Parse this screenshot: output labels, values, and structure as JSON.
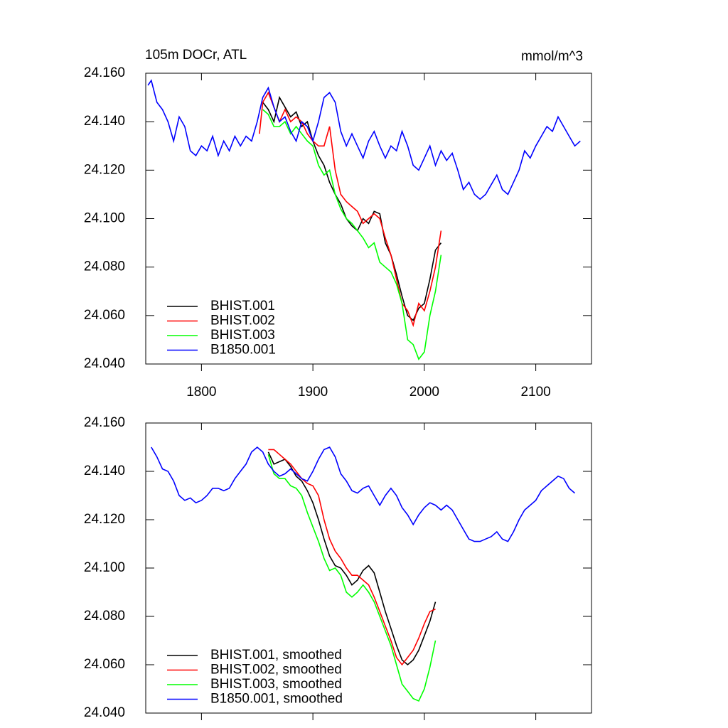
{
  "chart_data": [
    {
      "type": "line",
      "title": "105m DOCr, ATL",
      "units": "mmol/m^3",
      "xlim": [
        1750,
        2150
      ],
      "xticks": [
        1800,
        1900,
        2000,
        2100
      ],
      "xtick_labels": true,
      "ylim": [
        24.04,
        24.16
      ],
      "yticks": [
        {
          "value": 24.04,
          "label": "24.040"
        },
        {
          "value": 24.06,
          "label": "24.060"
        },
        {
          "value": 24.08,
          "label": "24.080"
        },
        {
          "value": 24.1,
          "label": "24.100"
        },
        {
          "value": 24.12,
          "label": "24.120"
        },
        {
          "value": 24.14,
          "label": "24.140"
        },
        {
          "value": 24.16,
          "label": "24.160"
        }
      ],
      "legend": "lower left",
      "series": [
        {
          "name": "BHIST.001",
          "color": "#000000",
          "x": [
            1855,
            1860,
            1865,
            1870,
            1875,
            1880,
            1885,
            1890,
            1895,
            1900,
            1905,
            1910,
            1915,
            1920,
            1925,
            1930,
            1935,
            1940,
            1945,
            1950,
            1955,
            1960,
            1965,
            1970,
            1975,
            1980,
            1985,
            1990,
            1995,
            2000,
            2005,
            2010,
            2015
          ],
          "values": [
            24.148,
            24.145,
            24.14,
            24.15,
            24.146,
            24.142,
            24.144,
            24.138,
            24.14,
            24.132,
            24.126,
            24.122,
            24.115,
            24.11,
            24.106,
            24.1,
            24.097,
            24.095,
            24.1,
            24.098,
            24.103,
            24.102,
            24.09,
            24.085,
            24.077,
            24.068,
            24.06,
            24.058,
            24.063,
            24.065,
            24.075,
            24.087,
            24.09
          ]
        },
        {
          "name": "BHIST.002",
          "color": "#ff0000",
          "x": [
            1852,
            1855,
            1860,
            1865,
            1870,
            1875,
            1880,
            1885,
            1890,
            1895,
            1900,
            1905,
            1910,
            1915,
            1920,
            1925,
            1930,
            1935,
            1940,
            1945,
            1950,
            1955,
            1960,
            1965,
            1970,
            1975,
            1980,
            1985,
            1990,
            1995,
            2000,
            2005,
            2010,
            2015
          ],
          "values": [
            24.135,
            24.148,
            24.152,
            24.146,
            24.14,
            24.145,
            24.14,
            24.142,
            24.14,
            24.135,
            24.132,
            24.13,
            24.13,
            24.138,
            24.12,
            24.11,
            24.107,
            24.105,
            24.103,
            24.098,
            24.1,
            24.102,
            24.1,
            24.092,
            24.085,
            24.075,
            24.065,
            24.062,
            24.056,
            24.065,
            24.062,
            24.07,
            24.08,
            24.095
          ]
        },
        {
          "name": "BHIST.003",
          "color": "#00ff00",
          "x": [
            1855,
            1860,
            1865,
            1870,
            1875,
            1880,
            1885,
            1890,
            1895,
            1900,
            1905,
            1910,
            1915,
            1920,
            1925,
            1930,
            1935,
            1940,
            1945,
            1950,
            1955,
            1960,
            1965,
            1970,
            1975,
            1980,
            1985,
            1990,
            1995,
            2000,
            2005,
            2010,
            2015
          ],
          "values": [
            24.145,
            24.143,
            24.138,
            24.138,
            24.14,
            24.135,
            24.138,
            24.135,
            24.132,
            24.13,
            24.122,
            24.118,
            24.12,
            24.11,
            24.104,
            24.1,
            24.098,
            24.095,
            24.092,
            24.088,
            24.09,
            24.082,
            24.08,
            24.078,
            24.073,
            24.065,
            24.05,
            24.048,
            24.042,
            24.045,
            24.06,
            24.07,
            24.085
          ]
        },
        {
          "name": "B1850.001",
          "color": "#0000ff",
          "x": [
            1752,
            1755,
            1760,
            1765,
            1770,
            1775,
            1780,
            1785,
            1790,
            1795,
            1800,
            1805,
            1810,
            1815,
            1820,
            1825,
            1830,
            1835,
            1840,
            1845,
            1850,
            1855,
            1860,
            1865,
            1870,
            1875,
            1880,
            1885,
            1890,
            1895,
            1900,
            1905,
            1910,
            1915,
            1920,
            1925,
            1930,
            1935,
            1940,
            1945,
            1950,
            1955,
            1960,
            1965,
            1970,
            1975,
            1980,
            1985,
            1990,
            1995,
            2000,
            2005,
            2010,
            2015,
            2020,
            2025,
            2030,
            2035,
            2040,
            2045,
            2050,
            2055,
            2060,
            2065,
            2070,
            2075,
            2080,
            2085,
            2090,
            2095,
            2100,
            2105,
            2110,
            2115,
            2120,
            2125,
            2130,
            2135,
            2140
          ],
          "values": [
            24.155,
            24.157,
            24.148,
            24.145,
            24.14,
            24.132,
            24.142,
            24.138,
            24.128,
            24.126,
            24.13,
            24.128,
            24.134,
            24.126,
            24.132,
            24.128,
            24.134,
            24.13,
            24.134,
            24.132,
            24.14,
            24.15,
            24.154,
            24.146,
            24.14,
            24.142,
            24.136,
            24.132,
            24.14,
            24.138,
            24.132,
            24.14,
            24.15,
            24.152,
            24.148,
            24.136,
            24.13,
            24.135,
            24.13,
            24.125,
            24.132,
            24.136,
            24.13,
            24.125,
            24.13,
            24.128,
            24.136,
            24.13,
            24.122,
            24.12,
            24.125,
            24.13,
            24.122,
            24.128,
            24.124,
            24.127,
            24.12,
            24.112,
            24.115,
            24.11,
            24.108,
            24.11,
            24.114,
            24.118,
            24.112,
            24.11,
            24.115,
            24.12,
            24.128,
            24.125,
            24.13,
            24.134,
            24.138,
            24.136,
            24.142,
            24.138,
            24.134,
            24.13,
            24.132
          ]
        }
      ]
    },
    {
      "type": "line",
      "xlim": [
        1750,
        2150
      ],
      "xticks": [
        1800,
        1900,
        2000,
        2100
      ],
      "xtick_labels": false,
      "ylim": [
        24.04,
        24.16
      ],
      "yticks": [
        {
          "value": 24.04,
          "label": "24.040"
        },
        {
          "value": 24.06,
          "label": "24.060"
        },
        {
          "value": 24.08,
          "label": "24.080"
        },
        {
          "value": 24.1,
          "label": "24.100"
        },
        {
          "value": 24.12,
          "label": "24.120"
        },
        {
          "value": 24.14,
          "label": "24.140"
        },
        {
          "value": 24.16,
          "label": "24.160"
        }
      ],
      "legend": "lower left",
      "series": [
        {
          "name": "BHIST.001, smoothed",
          "color": "#000000",
          "x": [
            1860,
            1865,
            1870,
            1875,
            1880,
            1885,
            1890,
            1895,
            1900,
            1905,
            1910,
            1915,
            1920,
            1925,
            1930,
            1935,
            1940,
            1945,
            1950,
            1955,
            1960,
            1965,
            1970,
            1975,
            1980,
            1985,
            1990,
            1995,
            2000,
            2005,
            2010
          ],
          "values": [
            24.148,
            24.143,
            24.144,
            24.145,
            24.142,
            24.138,
            24.136,
            24.132,
            24.127,
            24.12,
            24.112,
            24.105,
            24.101,
            24.1,
            24.097,
            24.093,
            24.095,
            24.099,
            24.101,
            24.098,
            24.09,
            24.082,
            24.075,
            24.068,
            24.062,
            24.06,
            24.062,
            24.066,
            24.072,
            24.078,
            24.086
          ]
        },
        {
          "name": "BHIST.002, smoothed",
          "color": "#ff0000",
          "x": [
            1860,
            1865,
            1870,
            1875,
            1880,
            1885,
            1890,
            1895,
            1900,
            1905,
            1910,
            1915,
            1920,
            1925,
            1930,
            1935,
            1940,
            1945,
            1950,
            1955,
            1960,
            1965,
            1970,
            1975,
            1980,
            1985,
            1990,
            1995,
            2000,
            2005,
            2010
          ],
          "values": [
            24.149,
            24.149,
            24.147,
            24.145,
            24.143,
            24.14,
            24.137,
            24.135,
            24.134,
            24.13,
            24.12,
            24.112,
            24.107,
            24.104,
            24.1,
            24.097,
            24.097,
            24.095,
            24.093,
            24.088,
            24.082,
            24.076,
            24.07,
            24.063,
            24.06,
            24.063,
            24.066,
            24.071,
            24.077,
            24.082,
            24.083
          ]
        },
        {
          "name": "BHIST.003, smoothed",
          "color": "#00ff00",
          "x": [
            1860,
            1865,
            1870,
            1875,
            1880,
            1885,
            1890,
            1895,
            1900,
            1905,
            1910,
            1915,
            1920,
            1925,
            1930,
            1935,
            1940,
            1945,
            1950,
            1955,
            1960,
            1965,
            1970,
            1975,
            1980,
            1985,
            1990,
            1995,
            2000,
            2005,
            2010
          ],
          "values": [
            24.147,
            24.139,
            24.137,
            24.137,
            24.134,
            24.133,
            24.13,
            24.123,
            24.117,
            24.111,
            24.104,
            24.099,
            24.1,
            24.097,
            24.09,
            24.088,
            24.09,
            24.093,
            24.09,
            24.086,
            24.08,
            24.074,
            24.068,
            24.06,
            24.052,
            24.049,
            24.046,
            24.045,
            24.05,
            24.059,
            24.07
          ]
        },
        {
          "name": "B1850.001, smoothed",
          "color": "#0000ff",
          "x": [
            1755,
            1760,
            1765,
            1770,
            1775,
            1780,
            1785,
            1790,
            1795,
            1800,
            1805,
            1810,
            1815,
            1820,
            1825,
            1830,
            1835,
            1840,
            1845,
            1850,
            1855,
            1860,
            1865,
            1870,
            1875,
            1880,
            1885,
            1890,
            1895,
            1900,
            1905,
            1910,
            1915,
            1920,
            1925,
            1930,
            1935,
            1940,
            1945,
            1950,
            1955,
            1960,
            1965,
            1970,
            1975,
            1980,
            1985,
            1990,
            1995,
            2000,
            2005,
            2010,
            2015,
            2020,
            2025,
            2030,
            2035,
            2040,
            2045,
            2050,
            2055,
            2060,
            2065,
            2070,
            2075,
            2080,
            2085,
            2090,
            2095,
            2100,
            2105,
            2110,
            2115,
            2120,
            2125,
            2130,
            2135
          ],
          "values": [
            24.15,
            24.146,
            24.141,
            24.14,
            24.136,
            24.13,
            24.128,
            24.129,
            24.127,
            24.128,
            24.13,
            24.133,
            24.133,
            24.132,
            24.133,
            24.137,
            24.14,
            24.143,
            24.148,
            24.15,
            24.148,
            24.143,
            24.14,
            24.138,
            24.139,
            24.141,
            24.139,
            24.137,
            24.136,
            24.14,
            24.145,
            24.149,
            24.15,
            24.146,
            24.139,
            24.136,
            24.132,
            24.131,
            24.133,
            24.134,
            24.13,
            24.126,
            24.13,
            24.133,
            24.13,
            24.125,
            24.122,
            24.118,
            24.122,
            24.125,
            24.127,
            24.126,
            24.124,
            24.126,
            24.124,
            24.12,
            24.116,
            24.112,
            24.111,
            24.111,
            24.112,
            24.113,
            24.115,
            24.112,
            24.111,
            24.115,
            24.12,
            24.124,
            24.126,
            24.128,
            24.132,
            24.134,
            24.136,
            24.138,
            24.137,
            24.133,
            24.131
          ]
        }
      ]
    }
  ]
}
